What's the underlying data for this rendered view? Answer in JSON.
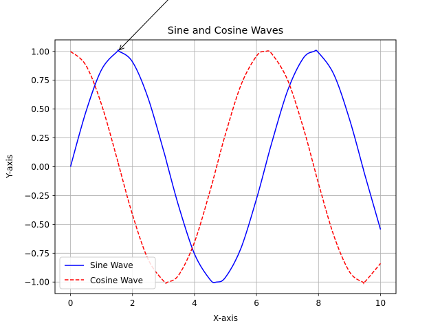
{
  "chart_data": {
    "type": "line",
    "title": "Sine and Cosine Waves",
    "xlabel": "X-axis",
    "ylabel": "Y-axis",
    "xlim": [
      -0.5,
      10.5
    ],
    "ylim": [
      -1.1,
      1.1
    ],
    "x_ticks": [
      0,
      2,
      4,
      6,
      8,
      10
    ],
    "x_tick_labels": [
      "0",
      "2",
      "4",
      "6",
      "8",
      "10"
    ],
    "y_ticks": [
      -1.0,
      -0.75,
      -0.5,
      -0.25,
      0.0,
      0.25,
      0.5,
      0.75,
      1.0
    ],
    "y_tick_labels": [
      "−1.00",
      "−0.75",
      "−0.50",
      "−0.25",
      "0.00",
      "0.25",
      "0.50",
      "0.75",
      "1.00"
    ],
    "grid": true,
    "legend_position": "lower-left",
    "x": [
      0,
      0.5,
      1,
      1.5,
      1.5708,
      2,
      2.5,
      3,
      3.1416,
      3.5,
      4,
      4.5,
      4.7124,
      5,
      5.5,
      6,
      6.2832,
      6.5,
      7,
      7.5,
      7.854,
      8,
      8.5,
      9,
      9.4248,
      9.5,
      10
    ],
    "series": [
      {
        "name": "Sine Wave",
        "color": "#0000ff",
        "line_style": "solid",
        "values": [
          0,
          0.479,
          0.841,
          0.997,
          1.0,
          0.909,
          0.598,
          0.141,
          0.0,
          -0.351,
          -0.757,
          -0.978,
          -1.0,
          -0.959,
          -0.706,
          -0.279,
          0.0,
          0.215,
          0.657,
          0.938,
          1.0,
          0.989,
          0.798,
          0.412,
          0.0,
          -0.075,
          -0.544
        ]
      },
      {
        "name": "Cosine Wave",
        "color": "#ff0000",
        "line_style": "dashed",
        "values": [
          1.0,
          0.878,
          0.54,
          0.071,
          0.0,
          -0.416,
          -0.801,
          -0.99,
          -1.0,
          -0.936,
          -0.654,
          -0.211,
          0.0,
          0.284,
          0.709,
          0.96,
          1.0,
          0.977,
          0.754,
          0.347,
          0.0,
          -0.146,
          -0.602,
          -0.911,
          -1.0,
          -0.997,
          -0.839
        ]
      }
    ],
    "annotations": [
      {
        "type": "arrow",
        "target": [
          1.5708,
          1.0
        ]
      }
    ]
  }
}
